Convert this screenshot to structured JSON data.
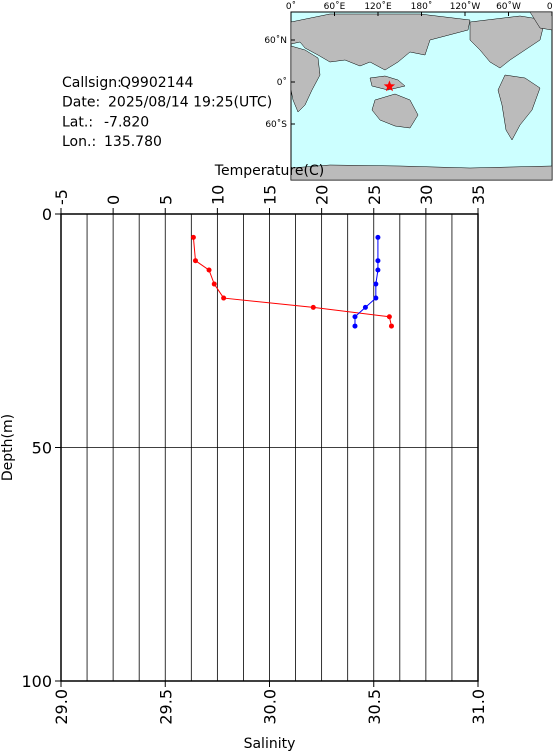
{
  "info": {
    "rows": [
      {
        "label": "Callsign:",
        "value": "Q9902144"
      },
      {
        "label": "Date:",
        "value": "2025/08/14 19:25(UTC)"
      },
      {
        "label": "Lat.:",
        "value": "-7.820"
      },
      {
        "label": "Lon.:",
        "value": "135.780"
      }
    ]
  },
  "map": {
    "lon_labels": [
      "0˚",
      "60˚E",
      "120˚E",
      "180˚",
      "120˚W",
      "60˚W",
      "0˚"
    ],
    "lat_labels": [
      "60˚N",
      "0˚",
      "60˚S"
    ]
  },
  "chart_data": {
    "type": "line",
    "xlabel": "Temperature(C)",
    "x2label": "Salinity",
    "ylabel": "Depth(m)",
    "xlim": [
      -5,
      35
    ],
    "xticks": [
      -5,
      0,
      5,
      10,
      15,
      20,
      25,
      30,
      35
    ],
    "x2lim": [
      29,
      31
    ],
    "x2ticks": [
      {
        "value": 29,
        "label": "29.0"
      },
      29.5,
      {
        "value": 30,
        "label": "30.0"
      },
      30.5,
      {
        "value": 31,
        "label": "31.0"
      }
    ],
    "ylim": [
      0,
      100
    ],
    "yticks": [
      0,
      50,
      100
    ],
    "y_inverted": true,
    "xgrid_step": 2.5,
    "grid": true,
    "series": [
      {
        "color": "#ff0000",
        "axis": "x",
        "values": [
          7.7,
          7.9,
          9.2,
          9.7,
          10.6,
          19.2,
          26.5,
          26.7
        ],
        "depth": [
          5,
          10,
          12,
          15,
          18,
          20,
          22,
          24
        ]
      },
      {
        "color": "#0000ff",
        "axis": "x2",
        "values": [
          30.52,
          30.52,
          30.52,
          30.51,
          30.51,
          30.46,
          30.41,
          30.41
        ],
        "depth": [
          5,
          10,
          12,
          15,
          18,
          20,
          22,
          24
        ]
      }
    ]
  }
}
